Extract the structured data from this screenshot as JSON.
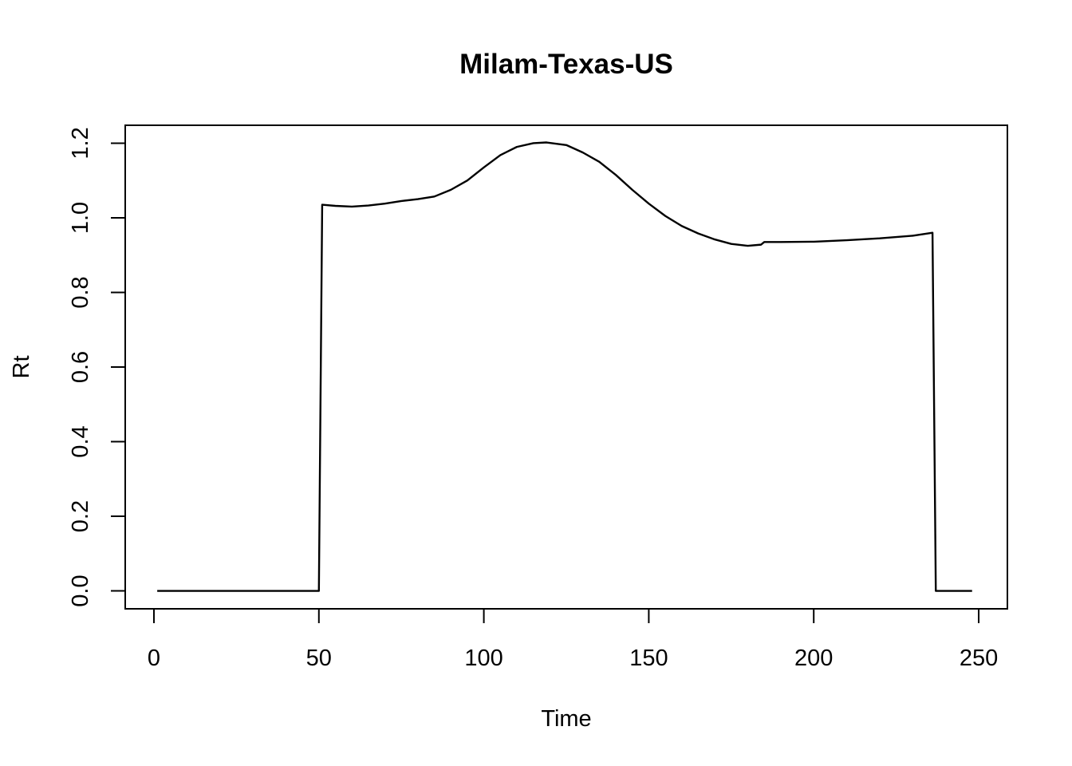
{
  "chart_data": {
    "type": "line",
    "title": "Milam-Texas-US",
    "xlabel": "Time",
    "ylabel": "Rt",
    "xlim": [
      -8.7,
      258.7
    ],
    "ylim": [
      -0.048,
      1.248
    ],
    "xticks": [
      0,
      50,
      100,
      150,
      200,
      250
    ],
    "yticks": [
      0.0,
      0.2,
      0.4,
      0.6,
      0.8,
      1.0,
      1.2
    ],
    "xtick_labels": [
      "0",
      "50",
      "100",
      "150",
      "200",
      "250"
    ],
    "ytick_labels": [
      "0.0",
      "0.2",
      "0.4",
      "0.6",
      "0.8",
      "1.0",
      "1.2"
    ],
    "grid": false,
    "line_color": "#000000",
    "series": [
      {
        "x": [
          1,
          50,
          51,
          55,
          60,
          65,
          70,
          75,
          80,
          85,
          90,
          95,
          100,
          105,
          110,
          115,
          119,
          125,
          130,
          135,
          140,
          145,
          150,
          155,
          160,
          165,
          170,
          175,
          180,
          184,
          185,
          190,
          200,
          210,
          220,
          230,
          236,
          237,
          240,
          248
        ],
        "y": [
          0.0,
          0.0,
          1.035,
          1.032,
          1.03,
          1.033,
          1.038,
          1.045,
          1.05,
          1.057,
          1.075,
          1.1,
          1.135,
          1.168,
          1.19,
          1.2,
          1.202,
          1.195,
          1.175,
          1.15,
          1.115,
          1.075,
          1.038,
          1.005,
          0.978,
          0.958,
          0.942,
          0.93,
          0.925,
          0.928,
          0.935,
          0.935,
          0.936,
          0.94,
          0.945,
          0.952,
          0.96,
          0.0,
          0.0,
          0.0
        ]
      }
    ]
  }
}
